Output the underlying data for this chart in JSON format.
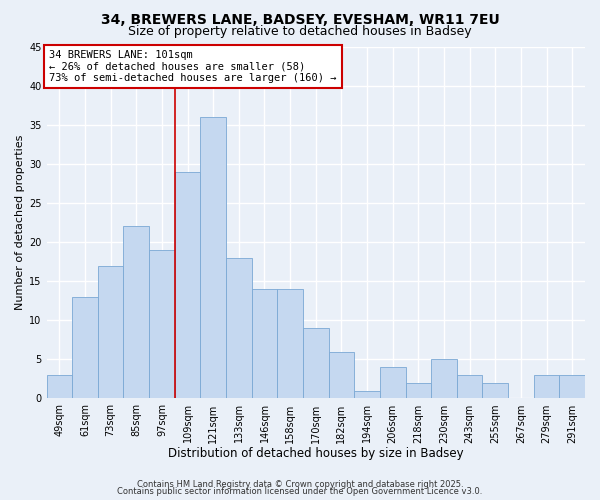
{
  "title": "34, BREWERS LANE, BADSEY, EVESHAM, WR11 7EU",
  "subtitle": "Size of property relative to detached houses in Badsey",
  "xlabel": "Distribution of detached houses by size in Badsey",
  "ylabel": "Number of detached properties",
  "bin_labels": [
    "49sqm",
    "61sqm",
    "73sqm",
    "85sqm",
    "97sqm",
    "109sqm",
    "121sqm",
    "133sqm",
    "146sqm",
    "158sqm",
    "170sqm",
    "182sqm",
    "194sqm",
    "206sqm",
    "218sqm",
    "230sqm",
    "243sqm",
    "255sqm",
    "267sqm",
    "279sqm",
    "291sqm"
  ],
  "values": [
    3,
    13,
    17,
    22,
    19,
    29,
    36,
    18,
    14,
    14,
    9,
    6,
    1,
    4,
    2,
    5,
    3,
    2,
    0,
    3,
    3
  ],
  "bar_color": "#c5d8f0",
  "bar_edge_color": "#7aa8d4",
  "vline_x_index": 4.5,
  "vline_color": "#cc0000",
  "annotation_line1": "34 BREWERS LANE: 101sqm",
  "annotation_line2": "← 26% of detached houses are smaller (58)",
  "annotation_line3": "73% of semi-detached houses are larger (160) →",
  "annotation_box_color": "#ffffff",
  "annotation_box_edge_color": "#cc0000",
  "ylim": [
    0,
    45
  ],
  "yticks": [
    0,
    5,
    10,
    15,
    20,
    25,
    30,
    35,
    40,
    45
  ],
  "footer1": "Contains HM Land Registry data © Crown copyright and database right 2025.",
  "footer2": "Contains public sector information licensed under the Open Government Licence v3.0.",
  "bg_color": "#eaf0f8",
  "grid_color": "#ffffff",
  "title_fontsize": 10,
  "subtitle_fontsize": 9,
  "xlabel_fontsize": 8.5,
  "ylabel_fontsize": 8,
  "tick_fontsize": 7,
  "annotation_fontsize": 7.5,
  "footer_fontsize": 6
}
